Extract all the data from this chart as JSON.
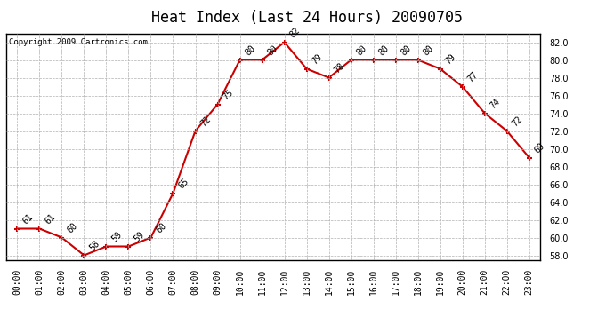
{
  "title": "Heat Index (Last 24 Hours) 20090705",
  "copyright": "Copyright 2009 Cartronics.com",
  "hours": [
    "00:00",
    "01:00",
    "02:00",
    "03:00",
    "04:00",
    "05:00",
    "06:00",
    "07:00",
    "08:00",
    "09:00",
    "10:00",
    "11:00",
    "12:00",
    "13:00",
    "14:00",
    "15:00",
    "16:00",
    "17:00",
    "18:00",
    "19:00",
    "20:00",
    "21:00",
    "22:00",
    "23:00"
  ],
  "values": [
    61,
    61,
    60,
    58,
    59,
    59,
    60,
    65,
    72,
    75,
    80,
    80,
    82,
    79,
    78,
    80,
    80,
    80,
    80,
    79,
    77,
    74,
    72,
    69
  ],
  "ylim": [
    57.5,
    83.0
  ],
  "yticks": [
    58.0,
    60.0,
    62.0,
    64.0,
    66.0,
    68.0,
    70.0,
    72.0,
    74.0,
    76.0,
    78.0,
    80.0,
    82.0
  ],
  "line_color": "#cc0000",
  "marker_color": "#cc0000",
  "grid_color": "#b0b0b0",
  "bg_color": "#ffffff",
  "title_fontsize": 12,
  "label_fontsize": 7,
  "annotation_fontsize": 7,
  "copyright_fontsize": 6.5
}
